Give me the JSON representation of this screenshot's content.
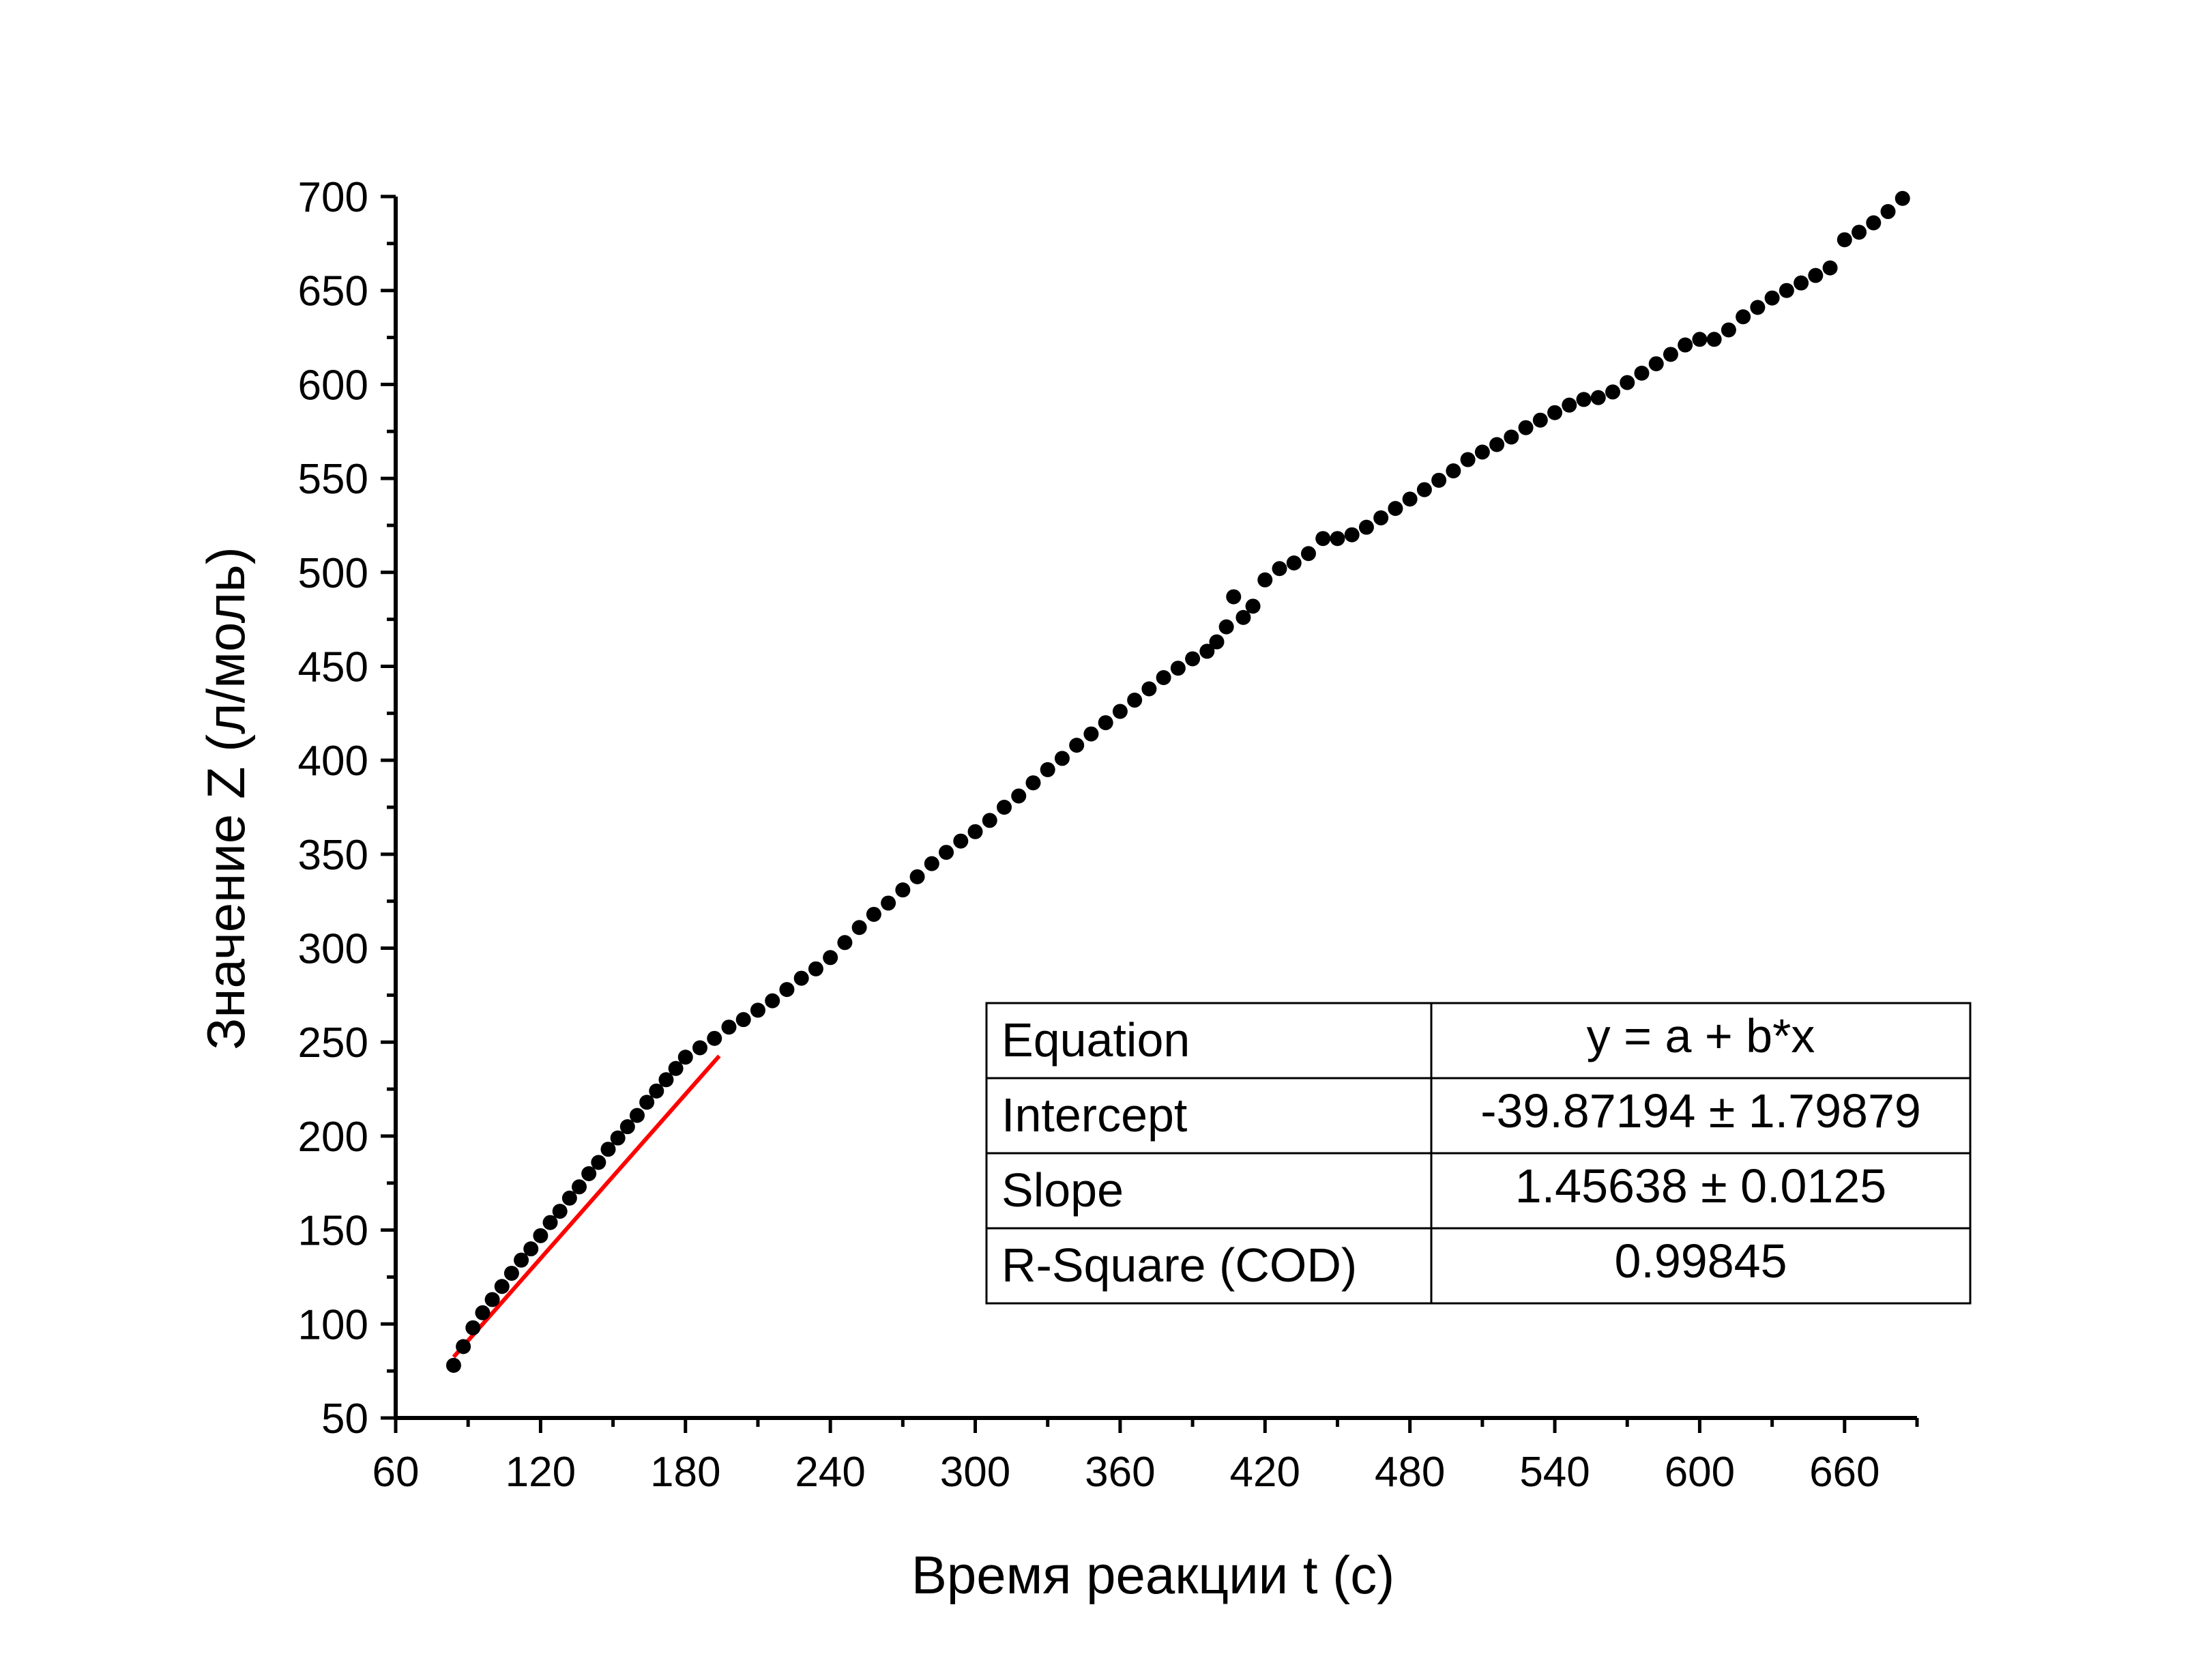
{
  "chart_data": {
    "type": "scatter",
    "title": "",
    "xlabel": "Время реакции t (с)",
    "ylabel": "Значение Z (л/моль)",
    "xlim": [
      60,
      690
    ],
    "ylim": [
      50,
      700
    ],
    "xticks": [
      60,
      120,
      180,
      240,
      300,
      360,
      420,
      480,
      540,
      600,
      660
    ],
    "yticks": [
      50,
      100,
      150,
      200,
      250,
      300,
      350,
      400,
      450,
      500,
      550,
      600,
      650,
      700
    ],
    "grid": false,
    "legend": "none",
    "marker_color": "#000000",
    "fit_color": "#ff0000",
    "series": [
      {
        "kind": "points",
        "points": [
          [
            84,
            78
          ],
          [
            88,
            88
          ],
          [
            92,
            98
          ],
          [
            96,
            106
          ],
          [
            100,
            113
          ],
          [
            104,
            120
          ],
          [
            108,
            127
          ],
          [
            112,
            134
          ],
          [
            116,
            140
          ],
          [
            120,
            147
          ],
          [
            124,
            154
          ],
          [
            128,
            160
          ],
          [
            132,
            167
          ],
          [
            136,
            173
          ],
          [
            140,
            180
          ],
          [
            144,
            186
          ],
          [
            148,
            193
          ],
          [
            152,
            199
          ],
          [
            156,
            205
          ],
          [
            160,
            211
          ],
          [
            164,
            218
          ],
          [
            168,
            224
          ],
          [
            172,
            230
          ],
          [
            176,
            236
          ],
          [
            180,
            242
          ],
          [
            186,
            247
          ],
          [
            192,
            252
          ],
          [
            198,
            258
          ],
          [
            204,
            262
          ],
          [
            210,
            267
          ],
          [
            216,
            272
          ],
          [
            222,
            278
          ],
          [
            228,
            284
          ],
          [
            234,
            289
          ],
          [
            240,
            295
          ],
          [
            246,
            303
          ],
          [
            252,
            311
          ],
          [
            258,
            318
          ],
          [
            264,
            324
          ],
          [
            270,
            331
          ],
          [
            276,
            338
          ],
          [
            282,
            345
          ],
          [
            288,
            351
          ],
          [
            294,
            357
          ],
          [
            300,
            362
          ],
          [
            306,
            368
          ],
          [
            312,
            375
          ],
          [
            318,
            381
          ],
          [
            324,
            388
          ],
          [
            330,
            395
          ],
          [
            336,
            401
          ],
          [
            342,
            408
          ],
          [
            348,
            414
          ],
          [
            354,
            420
          ],
          [
            360,
            426
          ],
          [
            366,
            432
          ],
          [
            372,
            438
          ],
          [
            378,
            444
          ],
          [
            384,
            449
          ],
          [
            390,
            454
          ],
          [
            396,
            458
          ],
          [
            400,
            463
          ],
          [
            404,
            471
          ],
          [
            407,
            487
          ],
          [
            411,
            476
          ],
          [
            415,
            482
          ],
          [
            420,
            496
          ],
          [
            426,
            502
          ],
          [
            432,
            505
          ],
          [
            438,
            510
          ],
          [
            444,
            518
          ],
          [
            450,
            518
          ],
          [
            456,
            520
          ],
          [
            462,
            524
          ],
          [
            468,
            529
          ],
          [
            474,
            534
          ],
          [
            480,
            539
          ],
          [
            486,
            544
          ],
          [
            492,
            549
          ],
          [
            498,
            554
          ],
          [
            504,
            560
          ],
          [
            510,
            564
          ],
          [
            516,
            568
          ],
          [
            522,
            572
          ],
          [
            528,
            577
          ],
          [
            534,
            581
          ],
          [
            540,
            585
          ],
          [
            546,
            589
          ],
          [
            552,
            592
          ],
          [
            558,
            593
          ],
          [
            564,
            596
          ],
          [
            570,
            601
          ],
          [
            576,
            606
          ],
          [
            582,
            611
          ],
          [
            588,
            616
          ],
          [
            594,
            621
          ],
          [
            600,
            624
          ],
          [
            606,
            624
          ],
          [
            612,
            629
          ],
          [
            618,
            636
          ],
          [
            624,
            641
          ],
          [
            630,
            646
          ],
          [
            636,
            650
          ],
          [
            642,
            654
          ],
          [
            648,
            658
          ],
          [
            654,
            662
          ],
          [
            660,
            677
          ],
          [
            666,
            681
          ],
          [
            672,
            686
          ],
          [
            678,
            692
          ],
          [
            684,
            699
          ]
        ]
      },
      {
        "kind": "linear_fit",
        "x_range": [
          84,
          194
        ],
        "intercept": -39.87194,
        "slope": 1.45638
      }
    ],
    "stats_table": [
      [
        "Equation",
        "y = a + b*x"
      ],
      [
        "Intercept",
        "-39.87194 ± 1.79879"
      ],
      [
        "Slope",
        "1.45638 ± 0.0125"
      ],
      [
        "R-Square (COD)",
        "0.99845"
      ]
    ]
  }
}
